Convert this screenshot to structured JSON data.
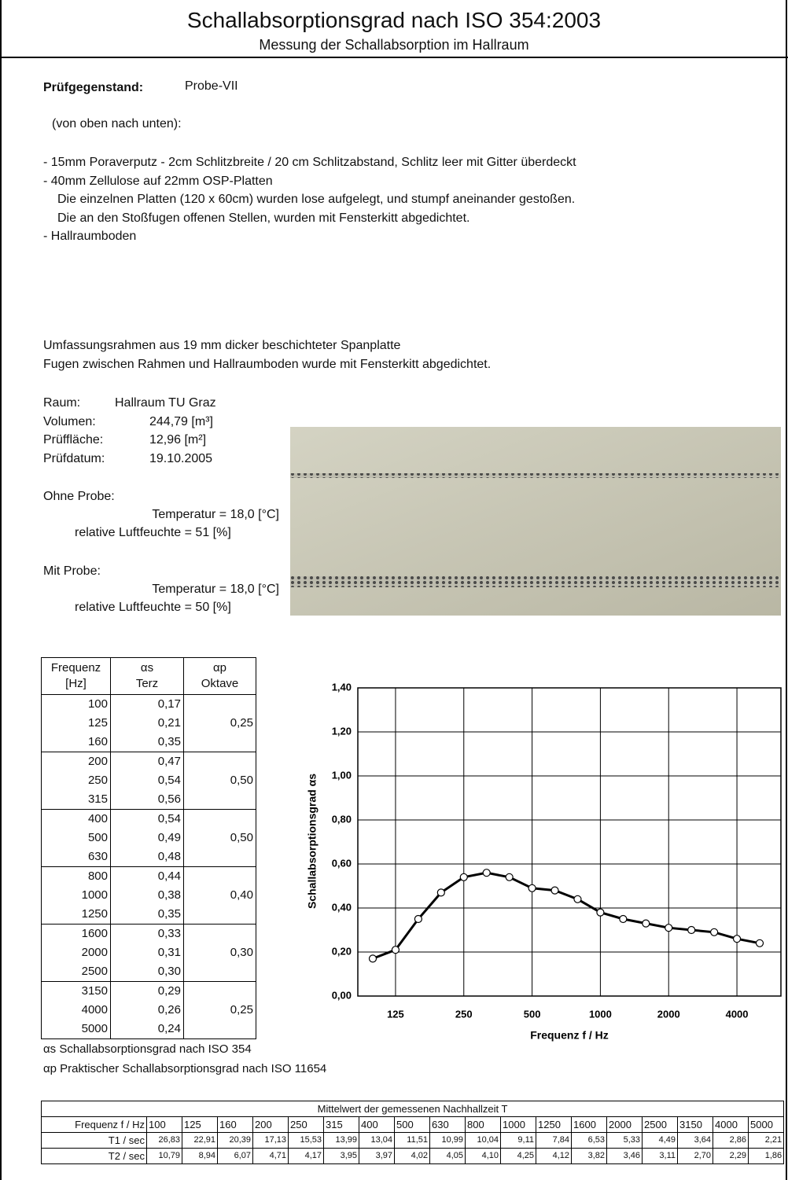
{
  "header": {
    "title": "Schallabsorptionsgrad nach ISO 354:2003",
    "subtitle": "Messung der Schallabsorption im Hallraum"
  },
  "specimen": {
    "label": "Prüfgegenstand:",
    "value": "Probe-VII"
  },
  "description": {
    "intro": "(von oben nach unten):",
    "lines": [
      "- 15mm Poraverputz - 2cm Schlitzbreite / 20 cm Schlitzabstand, Schlitz leer mit Gitter überdeckt",
      "- 40mm Zellulose auf 22mm OSP-Platten",
      "Die einzelnen Platten (120 x 60cm) wurden lose aufgelegt, und stumpf aneinander gestoßen.",
      "Die an den Stoßfugen offenen Stellen, wurden mit Fensterkitt abgedichtet.",
      "- Hallraumboden"
    ]
  },
  "frame": [
    "Umfassungsrahmen aus 19 mm dicker beschichteter Spanplatte",
    "Fugen zwischen Rahmen und Hallraumboden wurde mit Fensterkitt abgedichtet."
  ],
  "room": [
    {
      "label": "Raum:",
      "value": "Hallraum TU Graz"
    },
    {
      "label": "Volumen:",
      "value": "244,79 [m³]"
    },
    {
      "label": "Prüffläche:",
      "value": "12,96 [m²]"
    },
    {
      "label": "Prüfdatum:",
      "value": "19.10.2005"
    }
  ],
  "conditions": [
    {
      "label": "Ohne Probe:",
      "temperature": "Temperatur = 18,0 [°C]",
      "humidity": "relative Luftfeuchte = 51 [%]"
    },
    {
      "label": "Mit Probe:",
      "temperature": "Temperatur = 18,0 [°C]",
      "humidity": "relative Luftfeuchte = 50 [%]"
    }
  ],
  "table": {
    "headers": [
      [
        "Frequenz",
        "[Hz]"
      ],
      [
        "αs",
        "Terz"
      ],
      [
        "αp",
        "Oktave"
      ]
    ],
    "rows": [
      [
        "100",
        "0,17"
      ],
      [
        "125",
        "0,21"
      ],
      [
        "160",
        "0,35"
      ],
      [
        "200",
        "0,47"
      ],
      [
        "250",
        "0,54"
      ],
      [
        "315",
        "0,56"
      ],
      [
        "400",
        "0,54"
      ],
      [
        "500",
        "0,49"
      ],
      [
        "630",
        "0,48"
      ],
      [
        "800",
        "0,44"
      ],
      [
        "1000",
        "0,38"
      ],
      [
        "1250",
        "0,35"
      ],
      [
        "1600",
        "0,33"
      ],
      [
        "2000",
        "0,31"
      ],
      [
        "2500",
        "0,30"
      ],
      [
        "3150",
        "0,29"
      ],
      [
        "4000",
        "0,26"
      ],
      [
        "5000",
        "0,24"
      ]
    ],
    "octave": [
      "0,25",
      "0,50",
      "0,50",
      "0,40",
      "0,30",
      "0,25"
    ]
  },
  "notes": [
    "αs  Schallabsorptionsgrad nach ISO 354",
    "αp  Praktischer Schallabsorptionsgrad nach ISO 11654"
  ],
  "reverb_table": {
    "title": "Mittelwert der gemessenen Nachhallzeit T",
    "header": "Frequenz f / Hz",
    "frequencies": [
      "100",
      "125",
      "160",
      "200",
      "250",
      "315",
      "400",
      "500",
      "630",
      "800",
      "1000",
      "1250",
      "1600",
      "2000",
      "2500",
      "3150",
      "4000",
      "5000"
    ],
    "rows": [
      {
        "label": "T1 / sec",
        "values": [
          "26,83",
          "22,91",
          "20,39",
          "17,13",
          "15,53",
          "13,99",
          "13,04",
          "11,51",
          "10,99",
          "10,04",
          "9,11",
          "7,84",
          "6,53",
          "5,33",
          "4,49",
          "3,64",
          "2,86",
          "2,21"
        ]
      },
      {
        "label": "T2 / sec",
        "values": [
          "10,79",
          "8,94",
          "6,07",
          "4,71",
          "4,17",
          "3,95",
          "3,97",
          "4,02",
          "4,05",
          "4,10",
          "4,25",
          "4,12",
          "3,82",
          "3,46",
          "3,11",
          "2,70",
          "2,29",
          "1,86"
        ]
      }
    ]
  },
  "chart_data": {
    "type": "line",
    "x_label": "Frequenz f / Hz",
    "y_label": "Schallabsorptionsgrad αs",
    "categories": [
      null,
      "125",
      null,
      null,
      "250",
      null,
      null,
      "500",
      null,
      null,
      "1000",
      null,
      null,
      "2000",
      null,
      null,
      "4000",
      null
    ],
    "series": [
      {
        "name": "αs",
        "color": "#000000",
        "values": [
          0.17,
          0.21,
          0.35,
          0.47,
          0.54,
          0.56,
          0.54,
          0.49,
          0.48,
          0.44,
          0.38,
          0.35,
          0.33,
          0.31,
          0.3,
          0.29,
          0.26,
          0.24
        ]
      }
    ],
    "ylim": [
      0,
      1.4
    ],
    "yticks": [
      {
        "value": 0,
        "label": "0,00"
      },
      {
        "value": 0.2,
        "label": "0,20"
      },
      {
        "value": 0.4,
        "label": "0,40"
      },
      {
        "value": 0.6,
        "label": "0,60"
      },
      {
        "value": 0.8,
        "label": "0,80"
      },
      {
        "value": 1.0,
        "label": "1,00"
      },
      {
        "value": 1.2,
        "label": "1,20"
      },
      {
        "value": 1.4,
        "label": "1,40"
      }
    ],
    "grid": true
  }
}
